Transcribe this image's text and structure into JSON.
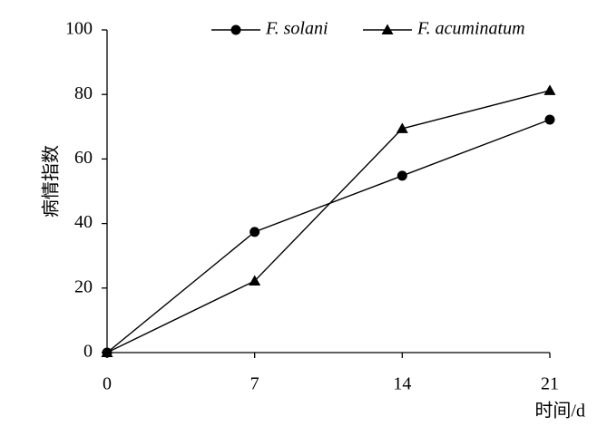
{
  "chart_data": {
    "type": "line",
    "x": [
      0,
      7,
      14,
      21
    ],
    "series": [
      {
        "name": "F. solani",
        "color": "#000000",
        "marker": "circle",
        "values": [
          0,
          37.4,
          54.8,
          72.2
        ]
      },
      {
        "name": "F. acuminatum",
        "color": "#000000",
        "marker": "triangle",
        "values": [
          0,
          22.2,
          69.4,
          81.2
        ]
      }
    ],
    "xlim": [
      0,
      21
    ],
    "xticks": [
      0,
      7,
      14,
      21
    ],
    "ylim": [
      0,
      100
    ],
    "yticks": [
      0,
      20,
      40,
      60,
      80,
      100
    ],
    "xlabel": "时间/d",
    "ylabel": "病情指数",
    "legend": "top",
    "grid": false
  }
}
